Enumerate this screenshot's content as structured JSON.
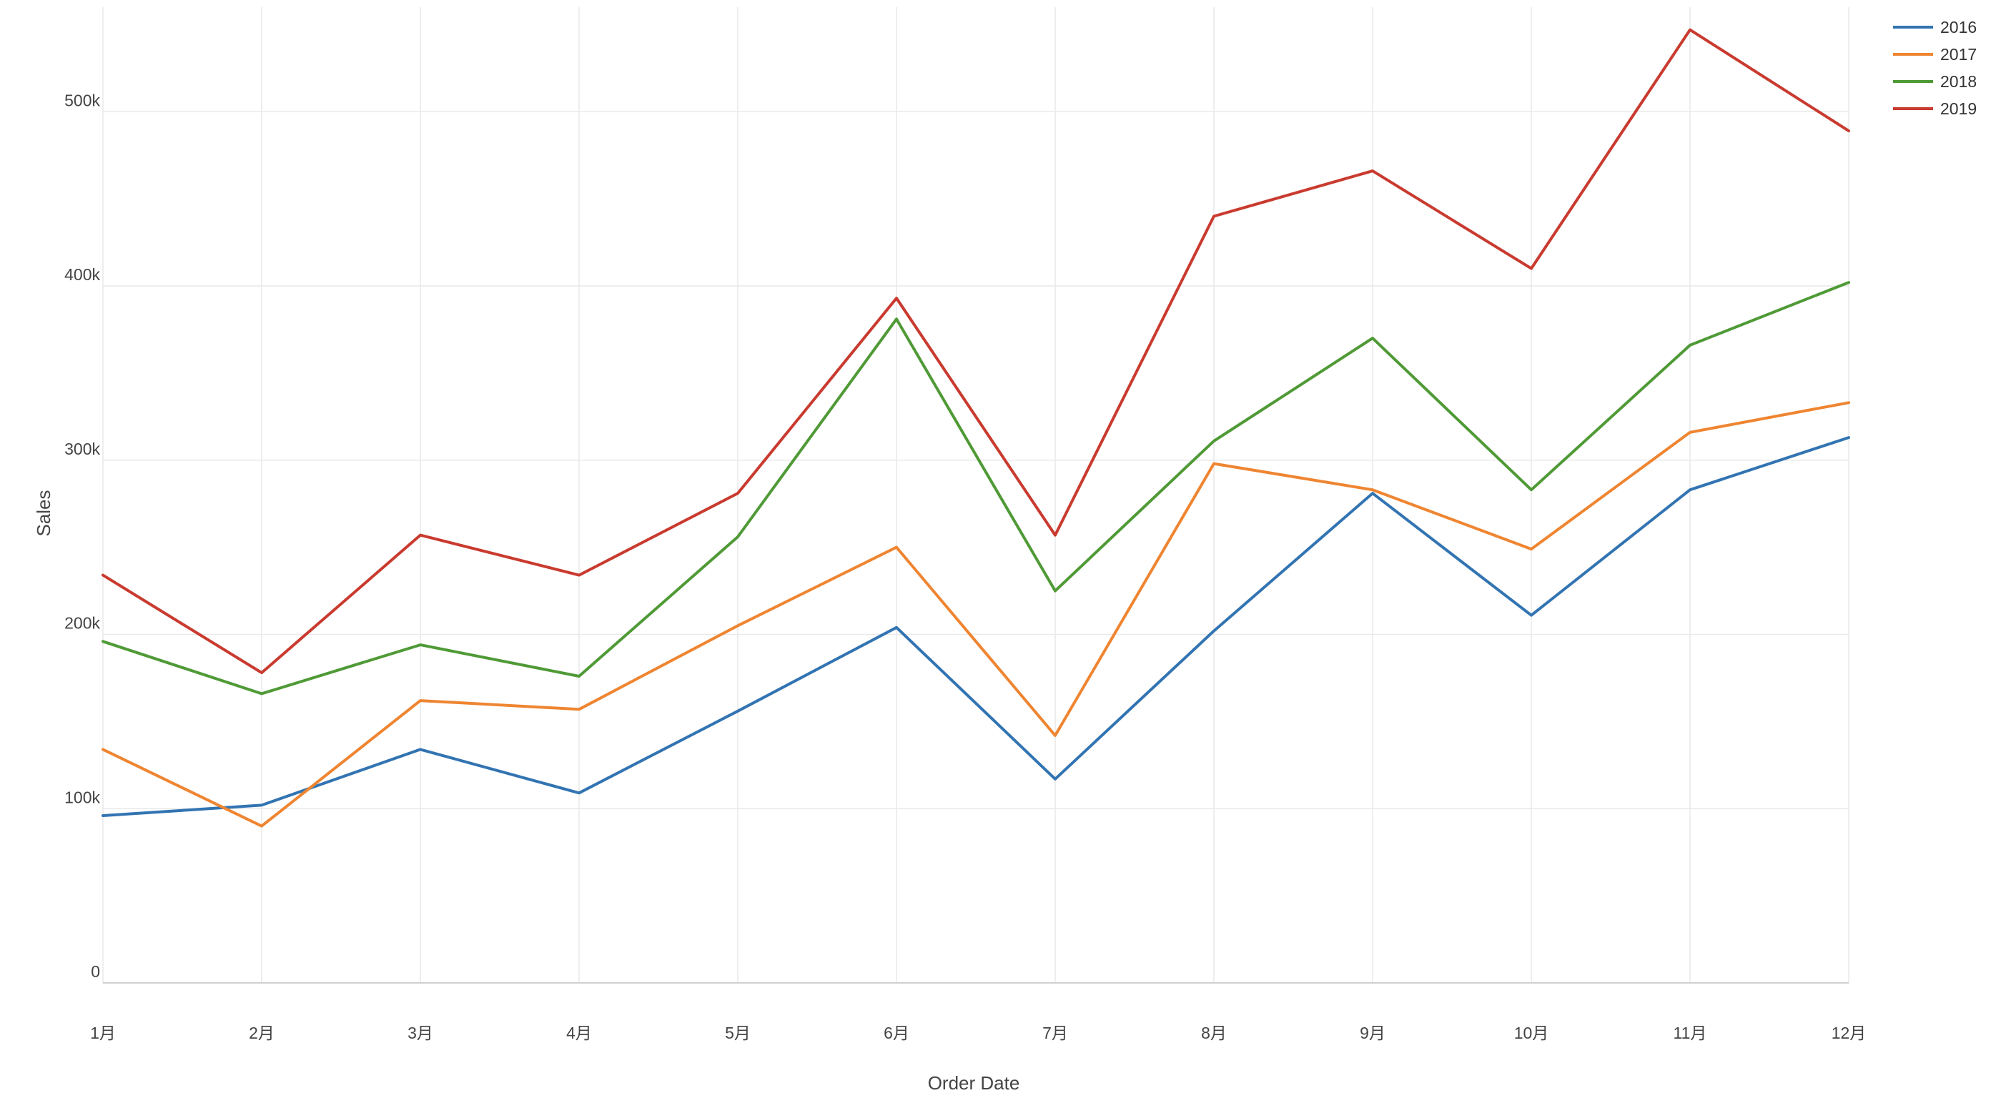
{
  "chart_data": {
    "type": "line",
    "title": "",
    "xlabel": "Order Date",
    "ylabel": "Sales",
    "categories": [
      "1月",
      "2月",
      "3月",
      "4月",
      "5月",
      "6月",
      "7月",
      "8月",
      "9月",
      "10月",
      "11月",
      "12月"
    ],
    "ylim": [
      0,
      560000
    ],
    "yticks": [
      0,
      100000,
      200000,
      300000,
      400000,
      500000
    ],
    "ytick_labels": [
      "0",
      "100k",
      "200k",
      "300k",
      "400k",
      "500k"
    ],
    "grid": true,
    "legend_position": "top-right",
    "series": [
      {
        "name": "2016",
        "color": "#3274b2",
        "values": [
          96000,
          102000,
          134000,
          109000,
          156000,
          204000,
          117000,
          202000,
          281000,
          211000,
          283000,
          313000
        ]
      },
      {
        "name": "2017",
        "color": "#ef8531",
        "values": [
          134000,
          90000,
          162000,
          157000,
          205000,
          250000,
          142000,
          298000,
          283000,
          249000,
          316000,
          333000
        ]
      },
      {
        "name": "2018",
        "color": "#4f9a36",
        "values": [
          196000,
          166000,
          194000,
          176000,
          256000,
          381000,
          225000,
          311000,
          370000,
          283000,
          366000,
          402000
        ]
      },
      {
        "name": "2019",
        "color": "#c93a2f",
        "values": [
          234000,
          178000,
          257000,
          234000,
          281000,
          393000,
          257000,
          440000,
          466000,
          410000,
          547000,
          489000
        ]
      }
    ]
  }
}
